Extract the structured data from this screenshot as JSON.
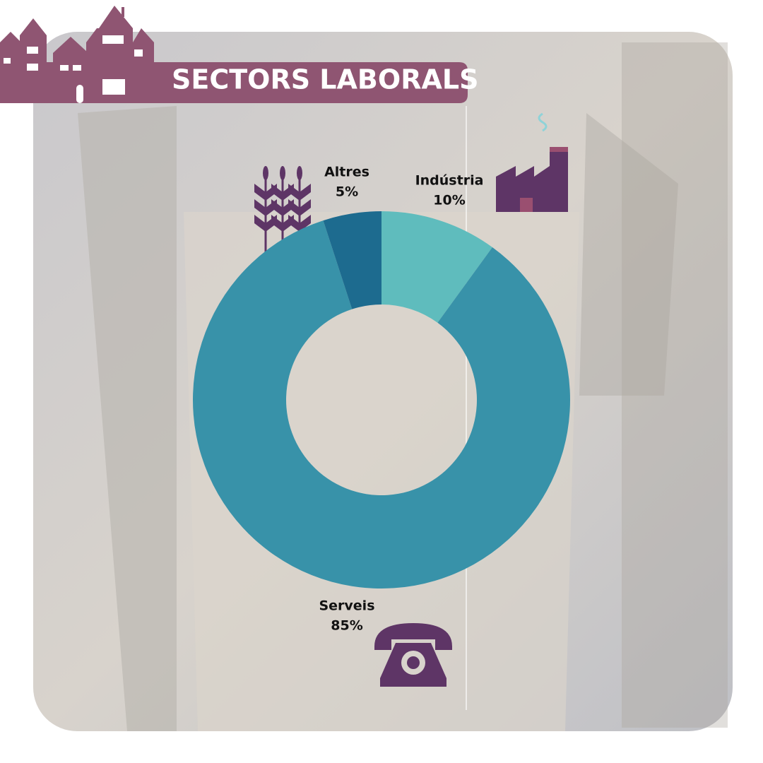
{
  "chart_data": {
    "type": "donut",
    "title": "SECTORS LABORALS",
    "categories": [
      "Indústria",
      "Serveis",
      "Altres"
    ],
    "values": [
      10,
      85,
      5
    ],
    "value_labels": [
      "10%",
      "85%",
      "5%"
    ],
    "colors": [
      "#5fbcbd",
      "#3892a9",
      "#1d6b8f"
    ]
  }
}
